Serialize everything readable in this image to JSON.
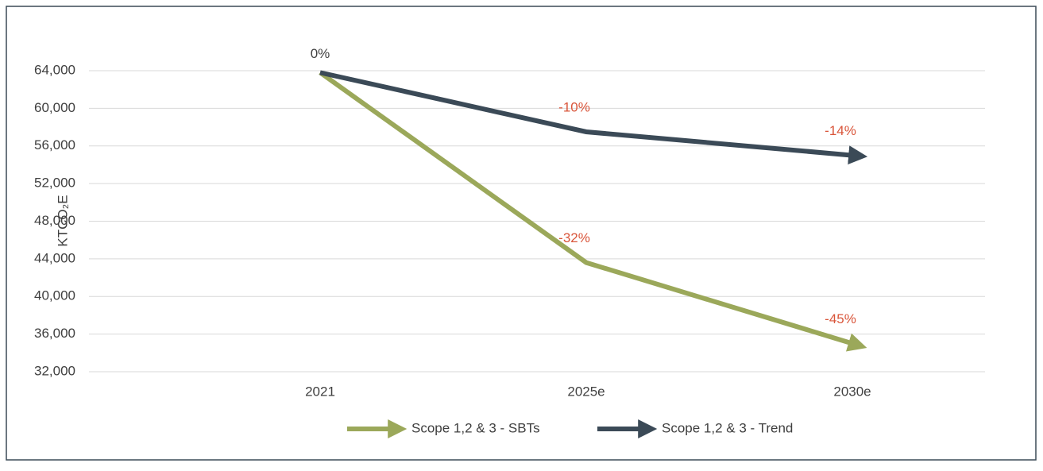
{
  "chart_data": {
    "type": "line",
    "y_axis_label": "KTCO₂E",
    "categories": [
      "2021",
      "2025e",
      "2030e"
    ],
    "series": [
      {
        "name": "Scope 1,2 & 3 - SBTs",
        "color": "#9ba85a",
        "values": [
          63800,
          43600,
          35000
        ],
        "value_labels": [
          null,
          "-32%",
          "-45%"
        ]
      },
      {
        "name": "Scope 1,2 & 3 - Trend",
        "color": "#3b4a57",
        "values": [
          63800,
          57500,
          55000
        ],
        "value_labels": [
          "0%",
          "-10%",
          "-14%"
        ]
      }
    ],
    "ylim": [
      32000,
      64000
    ],
    "yticks": [
      {
        "value": 32000,
        "label": "32,000"
      },
      {
        "value": 36000,
        "label": "36,000"
      },
      {
        "value": 40000,
        "label": "40,000"
      },
      {
        "value": 44000,
        "label": "44,000"
      },
      {
        "value": 48000,
        "label": "48,000"
      },
      {
        "value": 52000,
        "label": "52,000"
      },
      {
        "value": 56000,
        "label": "56,000"
      },
      {
        "value": 60000,
        "label": "60,000"
      },
      {
        "value": 64000,
        "label": "64,000"
      }
    ],
    "grid": true,
    "legend": "bottom"
  }
}
